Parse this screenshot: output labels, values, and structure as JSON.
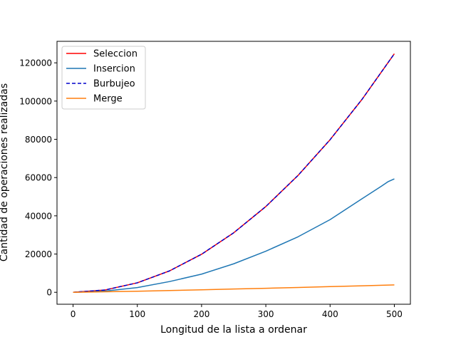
{
  "chart_data": {
    "type": "line",
    "xlabel": "Longitud de la lista a ordenar",
    "ylabel": "Cantidad de operaciones realizadas",
    "xlim": [
      -25,
      525
    ],
    "ylim": [
      -6250,
      131250
    ],
    "xticks": [
      0,
      100,
      200,
      300,
      400,
      500
    ],
    "yticks": [
      0,
      20000,
      40000,
      60000,
      80000,
      100000,
      120000
    ],
    "xtick_labels": [
      "0",
      "100",
      "200",
      "300",
      "400",
      "500"
    ],
    "ytick_labels": [
      "0",
      "20000",
      "40000",
      "60000",
      "80000",
      "100000",
      "120000"
    ],
    "grid": false,
    "legend_position": "top-left",
    "series": [
      {
        "name": "Seleccion",
        "color": "#ff0000",
        "dash": "solid",
        "x": [
          0,
          50,
          100,
          150,
          200,
          250,
          300,
          350,
          400,
          450,
          500
        ],
        "y": [
          0,
          1225,
          4950,
          11175,
          19900,
          31125,
          44850,
          61075,
          79800,
          101025,
          124750
        ]
      },
      {
        "name": "Insercion",
        "color": "#1f77b4",
        "dash": "solid",
        "x": [
          0,
          50,
          100,
          150,
          200,
          250,
          300,
          350,
          400,
          450,
          480,
          490,
          500
        ],
        "y": [
          0,
          650,
          2450,
          5600,
          9500,
          14900,
          21500,
          29000,
          38000,
          49000,
          55500,
          57800,
          59300
        ]
      },
      {
        "name": "Burbujeo",
        "color": "#0000cc",
        "dash": "dashed",
        "x": [
          0,
          50,
          100,
          150,
          200,
          250,
          300,
          350,
          400,
          450,
          500
        ],
        "y": [
          0,
          1225,
          4950,
          11175,
          19900,
          31125,
          44850,
          61075,
          79800,
          101025,
          124750
        ]
      },
      {
        "name": "Merge",
        "color": "#ff7f0e",
        "dash": "solid",
        "x": [
          0,
          50,
          100,
          150,
          200,
          250,
          300,
          350,
          400,
          450,
          500
        ],
        "y": [
          0,
          250,
          550,
          900,
          1300,
          1700,
          2100,
          2500,
          2950,
          3400,
          3850
        ]
      }
    ]
  }
}
